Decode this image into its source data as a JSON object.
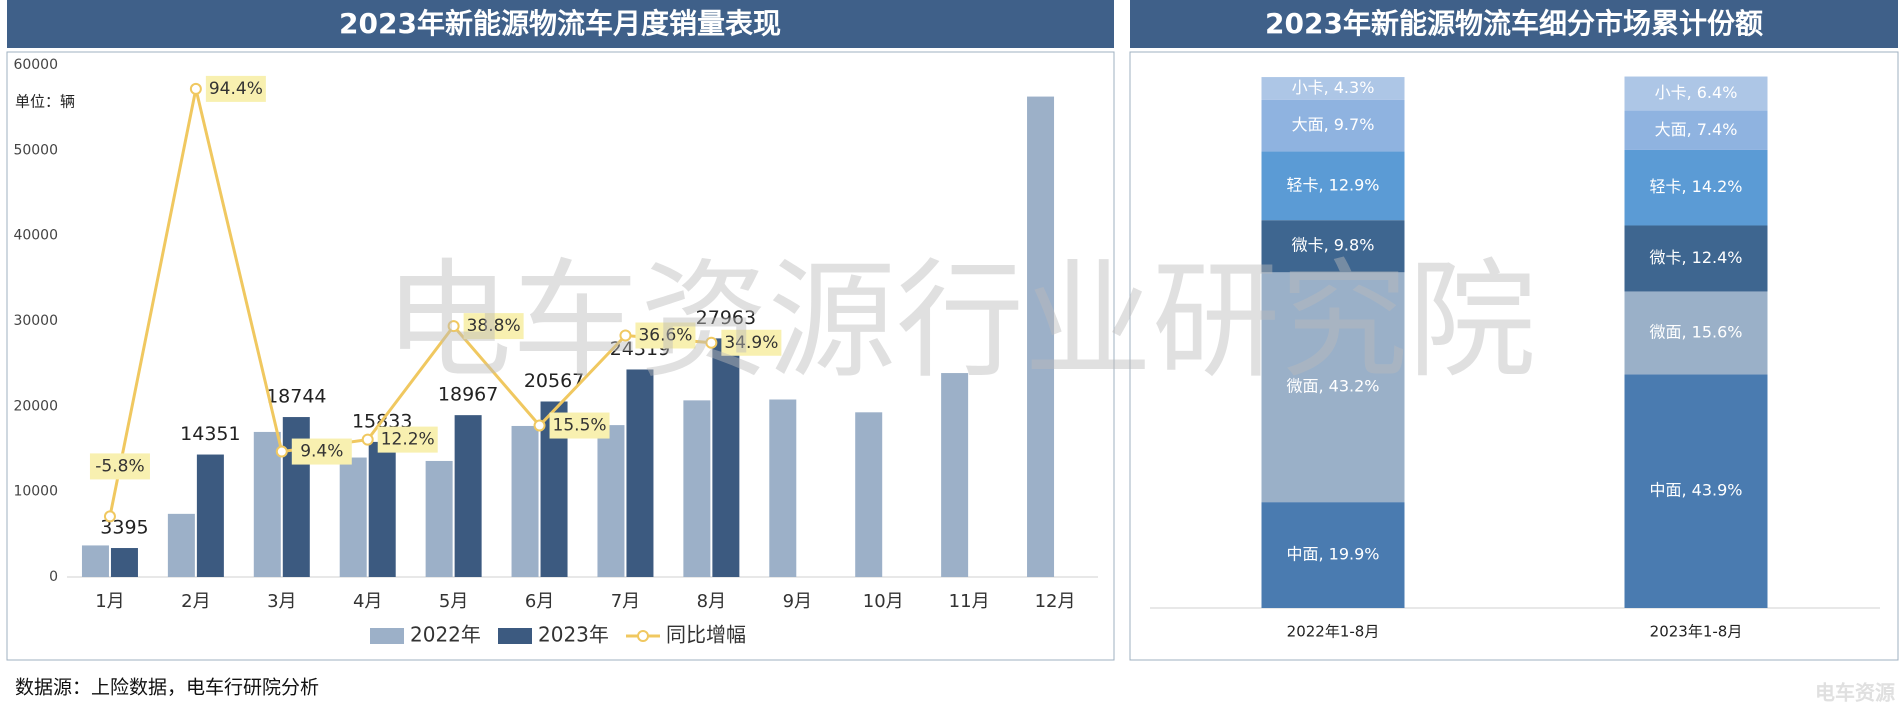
{
  "chart_data": [
    {
      "type": "bar",
      "title": "2023年新能源物流车月度销量表现",
      "unit_label": "单位：辆",
      "categories": [
        "1月",
        "2月",
        "3月",
        "4月",
        "5月",
        "6月",
        "7月",
        "8月",
        "9月",
        "10月",
        "11月",
        "12月"
      ],
      "series": [
        {
          "name": "2022年",
          "color": "#9cb0c8",
          "values": [
            3700,
            7400,
            17000,
            14000,
            13600,
            17700,
            17800,
            20700,
            20800,
            19300,
            23900,
            56300
          ]
        },
        {
          "name": "2023年",
          "color": "#3c5a80",
          "values": [
            3395,
            14351,
            18744,
            15833,
            18967,
            20567,
            24319,
            27963,
            null,
            null,
            null,
            null
          ]
        },
        {
          "name": "同比增幅",
          "type": "line",
          "axis": "y2",
          "color": "#f0c860",
          "values": [
            -5.8,
            94.4,
            9.4,
            12.2,
            38.8,
            15.5,
            36.6,
            34.9,
            null,
            null,
            null,
            null
          ],
          "value_labels": [
            "-5.8%",
            "94.4%",
            "9.4%",
            "12.2%",
            "38.8%",
            "15.5%",
            "36.6%",
            "34.9%",
            null,
            null,
            null,
            null
          ]
        }
      ],
      "ylim": [
        0,
        60000
      ],
      "yticks": [
        0,
        10000,
        20000,
        30000,
        40000,
        50000,
        60000
      ],
      "y2lim": [
        -20,
        100
      ],
      "legend": "bottom"
    },
    {
      "type": "stacked_bar",
      "title": "2023年新能源物流车细分市场累计份额",
      "categories": [
        "2022年1-8月",
        "2023年1-8月"
      ],
      "ylim": [
        0,
        100
      ],
      "series": [
        {
          "name": "中面",
          "color": "#4a7bb0",
          "values": [
            19.9,
            43.9
          ],
          "value_labels": [
            "中面, 19.9%",
            "中面, 43.9%"
          ]
        },
        {
          "name": "微面",
          "color": "#9ab0c8",
          "values": [
            43.2,
            15.6
          ],
          "value_labels": [
            "微面, 43.2%",
            "微面, 15.6%"
          ]
        },
        {
          "name": "微卡",
          "color": "#3e6690",
          "values": [
            9.8,
            12.4
          ],
          "value_labels": [
            "微卡, 9.8%",
            "微卡, 12.4%"
          ]
        },
        {
          "name": "轻卡",
          "color": "#5b9bd5",
          "values": [
            12.9,
            14.2
          ],
          "value_labels": [
            "轻卡, 12.9%",
            "轻卡, 14.2%"
          ]
        },
        {
          "name": "大面",
          "color": "#8fb3e0",
          "values": [
            9.7,
            7.4
          ],
          "value_labels": [
            "大面, 9.7%",
            "大面, 7.4%"
          ]
        },
        {
          "name": "小卡",
          "color": "#adc6e6",
          "values": [
            4.3,
            6.4
          ],
          "value_labels": [
            "小卡, 4.3%",
            "小卡, 6.4%"
          ]
        }
      ]
    }
  ],
  "watermark": "电车资源行业研究院",
  "source": "数据源：上险数据，电车行研院分析",
  "logo": "电车资源"
}
